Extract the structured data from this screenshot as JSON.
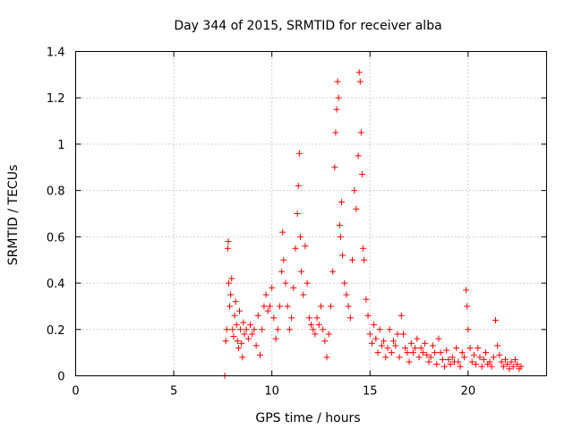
{
  "chart_data": {
    "type": "scatter",
    "title": "Day 344 of 2015, SRMTID for receiver alba",
    "xlabel": "GPS time / hours",
    "ylabel": "SRMTID / TECUs",
    "xlim": [
      0,
      24
    ],
    "ylim": [
      0,
      1.4
    ],
    "x_ticks": [
      0,
      5,
      10,
      15,
      20
    ],
    "y_ticks": [
      0,
      0.2,
      0.4,
      0.6,
      0.8,
      1,
      1.2,
      1.4
    ],
    "y_tick_labels": [
      "0",
      "0.2",
      "0.4",
      "0.6",
      "0.8",
      "1",
      "1.2",
      "1.4"
    ],
    "grid": true,
    "series": [
      {
        "name": "SRMTID",
        "marker": "+",
        "color": "#ff0000",
        "points": [
          [
            7.6,
            0.0
          ],
          [
            7.65,
            0.15
          ],
          [
            7.7,
            0.2
          ],
          [
            7.75,
            0.55
          ],
          [
            7.78,
            0.58
          ],
          [
            7.8,
            0.4
          ],
          [
            7.85,
            0.3
          ],
          [
            7.9,
            0.35
          ],
          [
            7.95,
            0.42
          ],
          [
            8.0,
            0.2
          ],
          [
            8.05,
            0.17
          ],
          [
            8.1,
            0.26
          ],
          [
            8.15,
            0.32
          ],
          [
            8.2,
            0.22
          ],
          [
            8.25,
            0.15
          ],
          [
            8.3,
            0.12
          ],
          [
            8.35,
            0.28
          ],
          [
            8.4,
            0.2
          ],
          [
            8.45,
            0.14
          ],
          [
            8.5,
            0.08
          ],
          [
            8.55,
            0.23
          ],
          [
            8.6,
            0.18
          ],
          [
            8.7,
            0.2
          ],
          [
            8.8,
            0.16
          ],
          [
            8.9,
            0.22
          ],
          [
            9.0,
            0.18
          ],
          [
            9.1,
            0.2
          ],
          [
            9.2,
            0.13
          ],
          [
            9.3,
            0.26
          ],
          [
            9.4,
            0.09
          ],
          [
            9.5,
            0.2
          ],
          [
            9.6,
            0.3
          ],
          [
            9.7,
            0.35
          ],
          [
            9.8,
            0.28
          ],
          [
            9.9,
            0.3
          ],
          [
            10.0,
            0.38
          ],
          [
            10.1,
            0.25
          ],
          [
            10.2,
            0.16
          ],
          [
            10.3,
            0.2
          ],
          [
            10.4,
            0.3
          ],
          [
            10.5,
            0.45
          ],
          [
            10.55,
            0.62
          ],
          [
            10.6,
            0.5
          ],
          [
            10.7,
            0.4
          ],
          [
            10.8,
            0.3
          ],
          [
            10.9,
            0.2
          ],
          [
            11.0,
            0.25
          ],
          [
            11.1,
            0.38
          ],
          [
            11.2,
            0.55
          ],
          [
            11.3,
            0.7
          ],
          [
            11.35,
            0.82
          ],
          [
            11.4,
            0.96
          ],
          [
            11.45,
            0.6
          ],
          [
            11.5,
            0.45
          ],
          [
            11.6,
            0.35
          ],
          [
            11.7,
            0.56
          ],
          [
            11.8,
            0.4
          ],
          [
            11.9,
            0.25
          ],
          [
            12.0,
            0.22
          ],
          [
            12.1,
            0.2
          ],
          [
            12.2,
            0.18
          ],
          [
            12.3,
            0.25
          ],
          [
            12.4,
            0.22
          ],
          [
            12.5,
            0.3
          ],
          [
            12.6,
            0.2
          ],
          [
            12.7,
            0.15
          ],
          [
            12.8,
            0.08
          ],
          [
            12.9,
            0.18
          ],
          [
            13.0,
            0.3
          ],
          [
            13.1,
            0.45
          ],
          [
            13.2,
            0.9
          ],
          [
            13.25,
            1.05
          ],
          [
            13.3,
            1.15
          ],
          [
            13.35,
            1.27
          ],
          [
            13.4,
            1.2
          ],
          [
            13.45,
            0.65
          ],
          [
            13.5,
            0.6
          ],
          [
            13.55,
            0.75
          ],
          [
            13.6,
            0.52
          ],
          [
            13.7,
            0.4
          ],
          [
            13.8,
            0.35
          ],
          [
            13.9,
            0.3
          ],
          [
            14.0,
            0.25
          ],
          [
            14.1,
            0.5
          ],
          [
            14.2,
            0.8
          ],
          [
            14.3,
            0.72
          ],
          [
            14.4,
            0.95
          ],
          [
            14.45,
            1.31
          ],
          [
            14.5,
            1.27
          ],
          [
            14.55,
            1.05
          ],
          [
            14.6,
            0.87
          ],
          [
            14.65,
            0.55
          ],
          [
            14.7,
            0.5
          ],
          [
            14.8,
            0.33
          ],
          [
            14.9,
            0.26
          ],
          [
            15.0,
            0.18
          ],
          [
            15.1,
            0.14
          ],
          [
            15.2,
            0.22
          ],
          [
            15.3,
            0.16
          ],
          [
            15.4,
            0.1
          ],
          [
            15.5,
            0.2
          ],
          [
            15.6,
            0.13
          ],
          [
            15.7,
            0.15
          ],
          [
            15.8,
            0.08
          ],
          [
            15.9,
            0.12
          ],
          [
            16.0,
            0.2
          ],
          [
            16.1,
            0.1
          ],
          [
            16.2,
            0.15
          ],
          [
            16.3,
            0.13
          ],
          [
            16.4,
            0.18
          ],
          [
            16.5,
            0.08
          ],
          [
            16.6,
            0.26
          ],
          [
            16.7,
            0.18
          ],
          [
            16.8,
            0.12
          ],
          [
            16.9,
            0.1
          ],
          [
            17.0,
            0.06
          ],
          [
            17.1,
            0.14
          ],
          [
            17.2,
            0.1
          ],
          [
            17.3,
            0.12
          ],
          [
            17.4,
            0.16
          ],
          [
            17.5,
            0.08
          ],
          [
            17.6,
            0.12
          ],
          [
            17.7,
            0.1
          ],
          [
            17.8,
            0.14
          ],
          [
            17.9,
            0.09
          ],
          [
            18.0,
            0.06
          ],
          [
            18.1,
            0.08
          ],
          [
            18.2,
            0.13
          ],
          [
            18.3,
            0.1
          ],
          [
            18.4,
            0.05
          ],
          [
            18.5,
            0.16
          ],
          [
            18.6,
            0.1
          ],
          [
            18.7,
            0.07
          ],
          [
            18.8,
            0.04
          ],
          [
            18.9,
            0.11
          ],
          [
            19.0,
            0.07
          ],
          [
            19.1,
            0.05
          ],
          [
            19.2,
            0.08
          ],
          [
            19.3,
            0.06
          ],
          [
            19.4,
            0.12
          ],
          [
            19.5,
            0.06
          ],
          [
            19.6,
            0.04
          ],
          [
            19.7,
            0.1
          ],
          [
            19.8,
            0.08
          ],
          [
            19.9,
            0.37
          ],
          [
            19.95,
            0.3
          ],
          [
            20.0,
            0.2
          ],
          [
            20.1,
            0.12
          ],
          [
            20.2,
            0.06
          ],
          [
            20.3,
            0.09
          ],
          [
            20.4,
            0.05
          ],
          [
            20.5,
            0.12
          ],
          [
            20.6,
            0.08
          ],
          [
            20.7,
            0.04
          ],
          [
            20.8,
            0.07
          ],
          [
            20.9,
            0.1
          ],
          [
            21.0,
            0.05
          ],
          [
            21.1,
            0.06
          ],
          [
            21.2,
            0.04
          ],
          [
            21.3,
            0.08
          ],
          [
            21.4,
            0.24
          ],
          [
            21.5,
            0.13
          ],
          [
            21.6,
            0.09
          ],
          [
            21.7,
            0.06
          ],
          [
            21.8,
            0.04
          ],
          [
            21.9,
            0.07
          ],
          [
            22.0,
            0.05
          ],
          [
            22.1,
            0.03
          ],
          [
            22.2,
            0.06
          ],
          [
            22.3,
            0.04
          ],
          [
            22.4,
            0.07
          ],
          [
            22.5,
            0.05
          ],
          [
            22.6,
            0.03
          ],
          [
            22.7,
            0.04
          ]
        ]
      }
    ]
  }
}
